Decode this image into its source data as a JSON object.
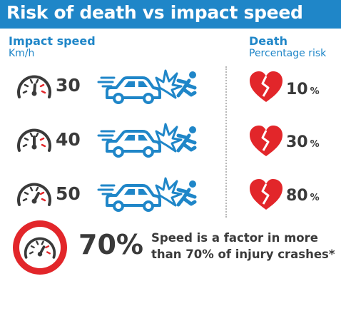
{
  "title": "Risk of death vs impact speed",
  "impact_column": {
    "heading": "Impact speed",
    "unit": "Km/h"
  },
  "death_column": {
    "heading": "Death",
    "subheading": "Percentage risk"
  },
  "rows": [
    {
      "speed": "30",
      "risk": "10",
      "risk_unit": "%"
    },
    {
      "speed": "40",
      "risk": "30",
      "risk_unit": "%"
    },
    {
      "speed": "50",
      "risk": "80",
      "risk_unit": "%"
    }
  ],
  "footer": {
    "stat": "70%",
    "line1": "Speed is a factor in more",
    "line2": "than 70% of injury crashes*"
  },
  "colors": {
    "title_bar": "#1f86c8",
    "accent_blue": "#1f86c8",
    "heart_red": "#e2262a",
    "text_dark": "#3a3a3a"
  },
  "icons": [
    "speedometer-icon",
    "car-crash-icon",
    "pedestrian-icon",
    "broken-heart-icon"
  ]
}
